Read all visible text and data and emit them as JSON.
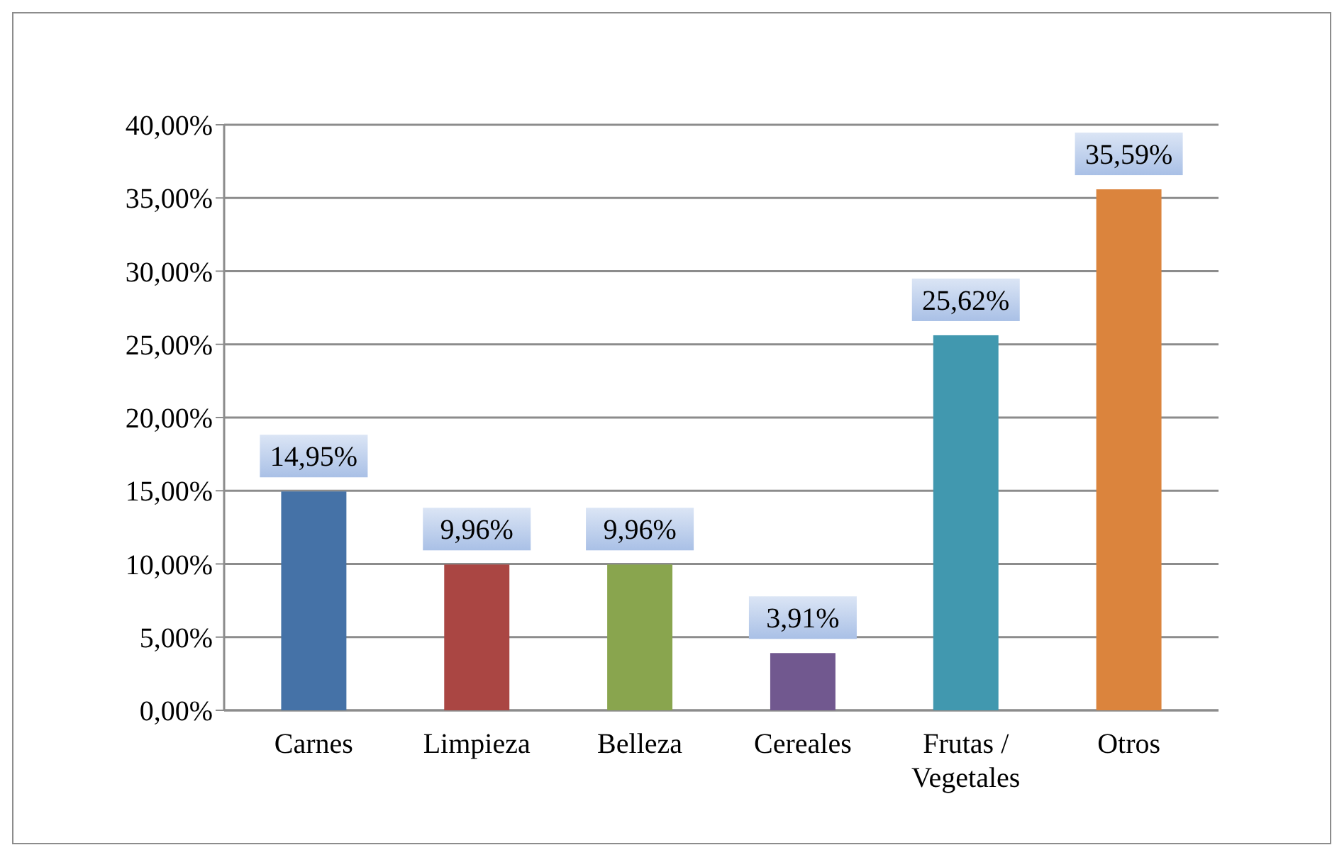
{
  "chart_data": {
    "type": "bar",
    "categories": [
      "Carnes",
      "Limpieza",
      "Belleza",
      "Cereales",
      "Frutas / Vegetales",
      "Otros"
    ],
    "values": [
      14.95,
      9.96,
      9.96,
      3.91,
      25.62,
      35.59
    ],
    "colors": [
      "#4572a7",
      "#aa4643",
      "#89a54e",
      "#71588f",
      "#4198af",
      "#db843d"
    ],
    "value_labels": [
      "14,95%",
      "9,96%",
      "9,96%",
      "3,91%",
      "25,62%",
      "35,59%"
    ],
    "ylim": [
      0,
      40
    ],
    "yticks": [
      {
        "value": 0,
        "label": "0,00%"
      },
      {
        "value": 5,
        "label": "5,00%"
      },
      {
        "value": 10,
        "label": "10,00%"
      },
      {
        "value": 15,
        "label": "15,00%"
      },
      {
        "value": 20,
        "label": "20,00%"
      },
      {
        "value": 25,
        "label": "25,00%"
      },
      {
        "value": 30,
        "label": "30,00%"
      },
      {
        "value": 35,
        "label": "35,00%"
      },
      {
        "value": 40,
        "label": "40,00%"
      }
    ],
    "grid": "y"
  }
}
